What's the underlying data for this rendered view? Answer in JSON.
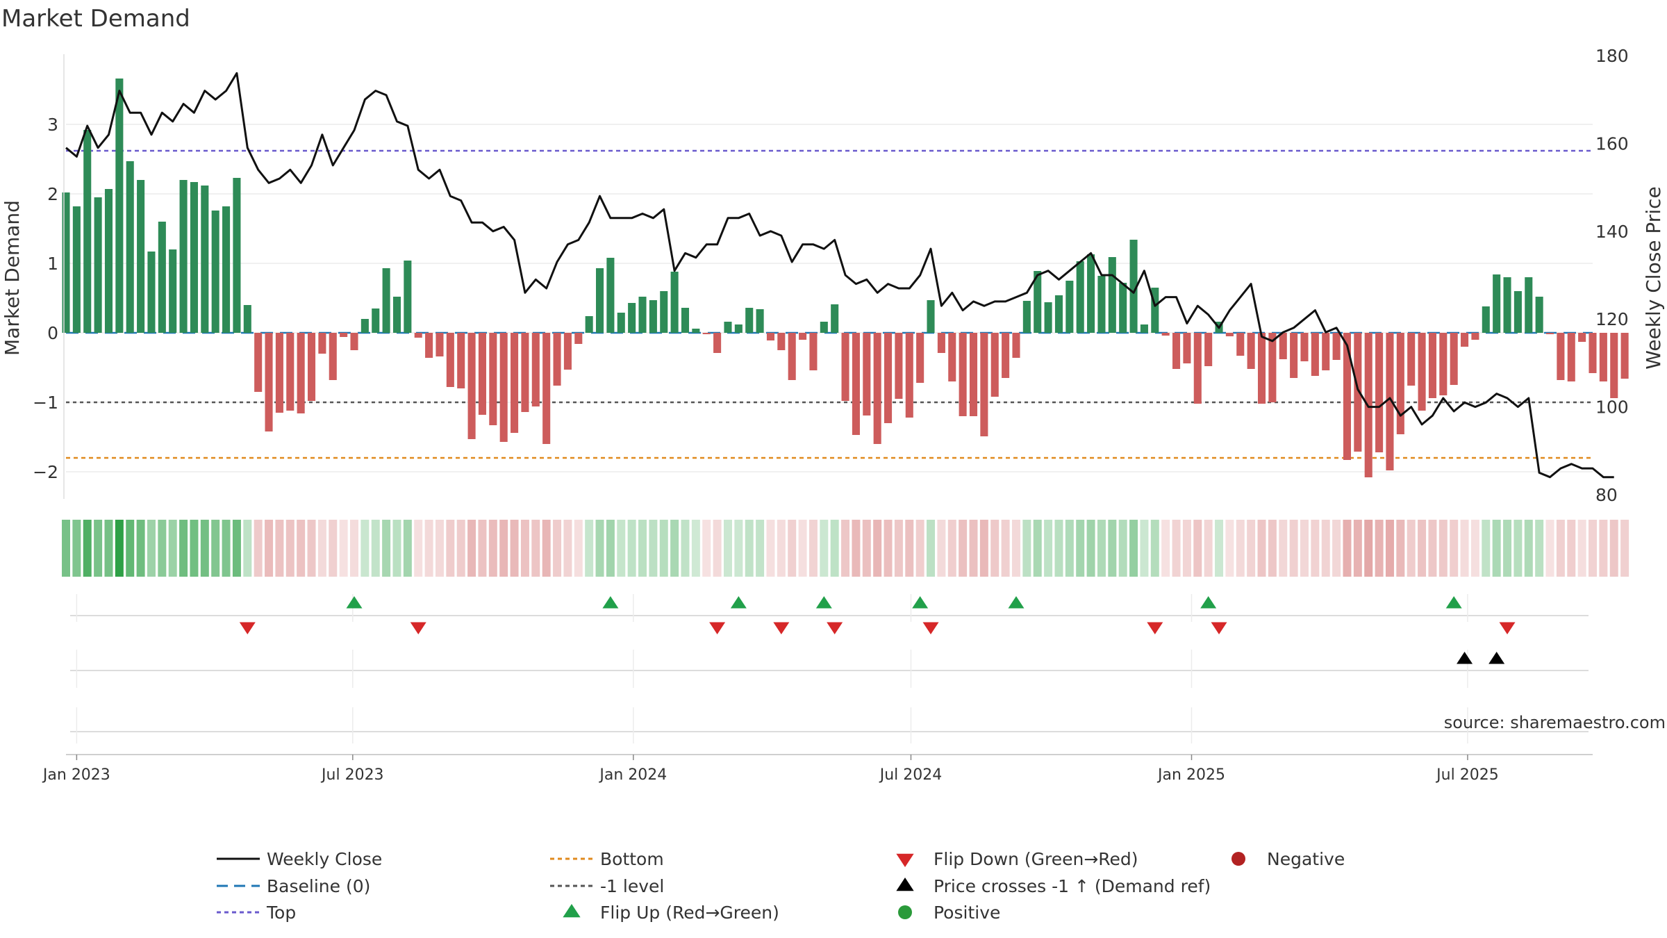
{
  "chart_data": {
    "type": "bar",
    "title": "Market Demand",
    "ylabel": "Market Demand",
    "ylabel_right": "Weekly Close Price",
    "ylim": [
      -2.4,
      3.9
    ],
    "ylim_right": [
      80,
      180
    ],
    "yticks": [
      -2,
      -1,
      0,
      1,
      2,
      3
    ],
    "yticks_right": [
      80,
      100,
      120,
      140,
      160,
      180
    ],
    "x_start": "2022-12-25",
    "x_end": "2025-09-21",
    "xticks": [
      {
        "date": "2023-01-01",
        "label": "Jan 2023"
      },
      {
        "date": "2023-07-01",
        "label": "Jul 2023"
      },
      {
        "date": "2024-01-01",
        "label": "Jan 2024"
      },
      {
        "date": "2024-07-01",
        "label": "Jul 2024"
      },
      {
        "date": "2025-01-01",
        "label": "Jan 2025"
      },
      {
        "date": "2025-07-01",
        "label": "Jul 2025"
      }
    ],
    "series": [
      {
        "name": "Market Demand",
        "kind": "bar",
        "first_week": "2022-12-25",
        "values": [
          2.02,
          1.82,
          2.92,
          1.95,
          2.07,
          3.66,
          2.47,
          2.2,
          1.17,
          1.6,
          1.2,
          2.2,
          2.17,
          2.12,
          1.76,
          1.82,
          2.23,
          0.4,
          -0.85,
          -1.42,
          -1.15,
          -1.12,
          -1.16,
          -0.98,
          -0.3,
          -0.68,
          -0.06,
          -0.25,
          0.2,
          0.35,
          0.93,
          0.52,
          1.04,
          -0.07,
          -0.36,
          -0.34,
          -0.78,
          -0.8,
          -1.53,
          -1.18,
          -1.33,
          -1.57,
          -1.44,
          -1.14,
          -1.06,
          -1.6,
          -0.76,
          -0.53,
          -0.16,
          0.24,
          0.93,
          1.08,
          0.29,
          0.43,
          0.52,
          0.47,
          0.6,
          0.88,
          0.36,
          0.06,
          -0.02,
          -0.29,
          0.16,
          0.12,
          0.36,
          0.34,
          -0.11,
          -0.25,
          -0.68,
          -0.1,
          -0.54,
          0.16,
          0.41,
          -0.98,
          -1.47,
          -1.19,
          -1.6,
          -1.3,
          -0.95,
          -1.22,
          -0.72,
          0.47,
          -0.29,
          -0.7,
          -1.2,
          -1.2,
          -1.49,
          -0.92,
          -0.65,
          -0.36,
          0.46,
          0.89,
          0.44,
          0.54,
          0.75,
          1.03,
          1.13,
          0.82,
          1.09,
          0.72,
          1.34,
          0.12,
          0.65,
          -0.04,
          -0.52,
          -0.44,
          -1.02,
          -0.48,
          0.16,
          -0.05,
          -0.33,
          -0.52,
          -1.02,
          -1.0,
          -0.38,
          -0.65,
          -0.41,
          -0.62,
          -0.54,
          -0.39,
          -1.83,
          -1.71,
          -2.08,
          -1.72,
          -1.98,
          -1.46,
          -0.76,
          -1.12,
          -0.94,
          -0.9,
          -0.75,
          -0.2,
          -0.1,
          0.38,
          0.84,
          0.8,
          0.6,
          0.8,
          0.52,
          -0.02,
          -0.68,
          -0.7,
          -0.13,
          -0.58,
          -0.7,
          -0.94,
          -0.66
        ]
      },
      {
        "name": "Weekly Close",
        "kind": "line",
        "first_week": "2022-12-25",
        "values": [
          159,
          157,
          164,
          159,
          162,
          172,
          167,
          167,
          162,
          167,
          165,
          169,
          167,
          172,
          170,
          172,
          176,
          159,
          154,
          151,
          152,
          154,
          151,
          155,
          162,
          155,
          159,
          163,
          170,
          172,
          171,
          165,
          164,
          154,
          152,
          154,
          148,
          147,
          142,
          142,
          140,
          141,
          138,
          126,
          129,
          127,
          133,
          137,
          138,
          142,
          148,
          143,
          143,
          143,
          144,
          143,
          145,
          131,
          135,
          134,
          137,
          137,
          143,
          143,
          144,
          139,
          140,
          139,
          133,
          137,
          137,
          136,
          138,
          130,
          128,
          129,
          126,
          128,
          127,
          127,
          130,
          136,
          123,
          126,
          122,
          124,
          123,
          124,
          124,
          125,
          126,
          130,
          131,
          129,
          131,
          133,
          135,
          130,
          130,
          128,
          126,
          131,
          123,
          125,
          125,
          119,
          123,
          121,
          118,
          122,
          125,
          128,
          116,
          115,
          117,
          118,
          120,
          122,
          117,
          118,
          114,
          104,
          100,
          100,
          102,
          98,
          100,
          96,
          98,
          102,
          99,
          101,
          100,
          101,
          103,
          102,
          100,
          102,
          85,
          84,
          86,
          87,
          86,
          86,
          84,
          84
        ]
      },
      {
        "name": "Baseline (0)",
        "kind": "hline",
        "value": 0
      },
      {
        "name": "Top",
        "kind": "hline",
        "value": 2.62
      },
      {
        "name": "-1 level",
        "kind": "hline",
        "value": -1
      },
      {
        "name": "Bottom",
        "kind": "hline",
        "value": -1.8
      }
    ],
    "heat_strip": {
      "name": "Demand intensity strip",
      "values_from": "Market Demand"
    },
    "flip_up_weeks": [
      "2023-07-02",
      "2023-12-17",
      "2024-03-10",
      "2024-05-05",
      "2024-07-07",
      "2024-09-08",
      "2025-01-12",
      "2025-06-22"
    ],
    "flip_down_weeks": [
      "2023-04-23",
      "2023-08-13",
      "2024-02-25",
      "2024-04-07",
      "2024-05-12",
      "2024-07-14",
      "2024-12-08",
      "2025-01-19",
      "2025-07-27"
    ],
    "price_cross_weeks": [
      "2025-06-29",
      "2025-07-20"
    ],
    "legend": [
      {
        "label": "Weekly Close",
        "symbol": "solid-line",
        "color": "#111111"
      },
      {
        "label": "Baseline (0)",
        "symbol": "dashed-line",
        "color": "#1f77b4"
      },
      {
        "label": "Top",
        "symbol": "dotted-line",
        "color": "#6a5acd"
      },
      {
        "label": "Bottom",
        "symbol": "dotted-line",
        "color": "#e08a1e"
      },
      {
        "label": "-1 level",
        "symbol": "dotted-line",
        "color": "#555555"
      },
      {
        "label": "Flip Up (Red→Green)",
        "symbol": "triangle-up",
        "color": "#21a04a"
      },
      {
        "label": "Flip Down (Green→Red)",
        "symbol": "triangle-down",
        "color": "#d62728"
      },
      {
        "label": "Price crosses -1 ↑ (Demand ref)",
        "symbol": "triangle-up",
        "color": "#000000"
      },
      {
        "label": "Positive",
        "symbol": "circle",
        "color": "#2a9a3a"
      },
      {
        "label": "Negative",
        "symbol": "circle",
        "color": "#b22222"
      }
    ],
    "annotation": "source: sharemaestro.com",
    "colors": {
      "positive_bar": "#2e8b57",
      "negative_bar": "#cd5c5c",
      "line": "#111111"
    }
  }
}
